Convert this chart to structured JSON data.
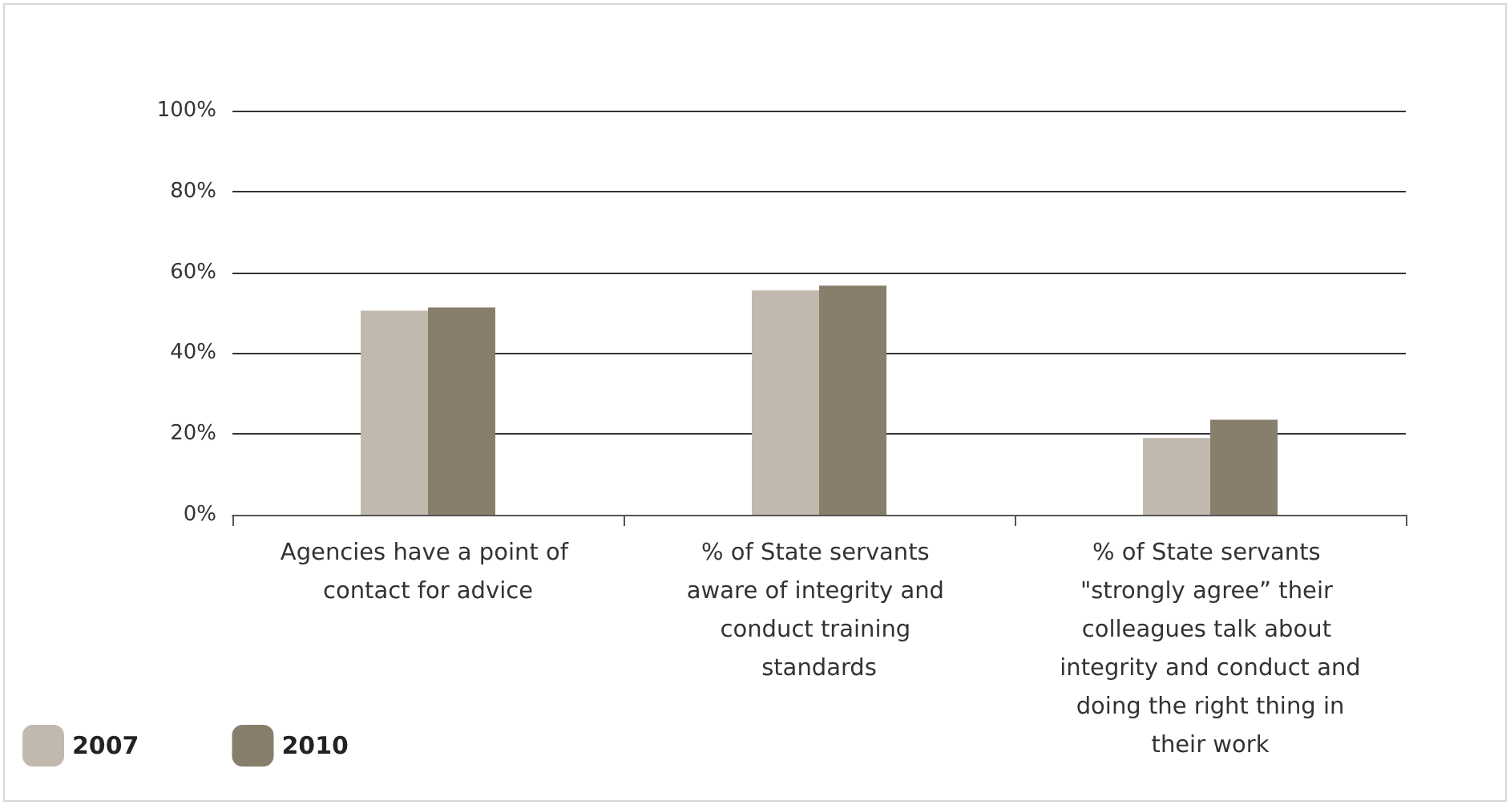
{
  "chart_data": {
    "type": "bar",
    "categories": [
      "Agencies have a point of contact for advice",
      "% of State servants aware of integrity and conduct training standards",
      "% of State servants \"strongly agree” their colleagues talk about integrity and conduct and doing the right thing in their work"
    ],
    "series": [
      {
        "name": "2007",
        "color": "#c1b9ad",
        "values": [
          50.5,
          55.5,
          19
        ]
      },
      {
        "name": "2010",
        "color": "#877e6c",
        "values": [
          51.3,
          56.7,
          23.5
        ]
      }
    ],
    "ylim": [
      0,
      100
    ],
    "yticks": [
      {
        "value": 0,
        "label": "0%"
      },
      {
        "value": 20,
        "label": "20%"
      },
      {
        "value": 40,
        "label": "40%"
      },
      {
        "value": 60,
        "label": "60%"
      },
      {
        "value": 80,
        "label": "80%"
      },
      {
        "value": 100,
        "label": "100%"
      }
    ],
    "grid": "y",
    "legend": "bottom left"
  }
}
